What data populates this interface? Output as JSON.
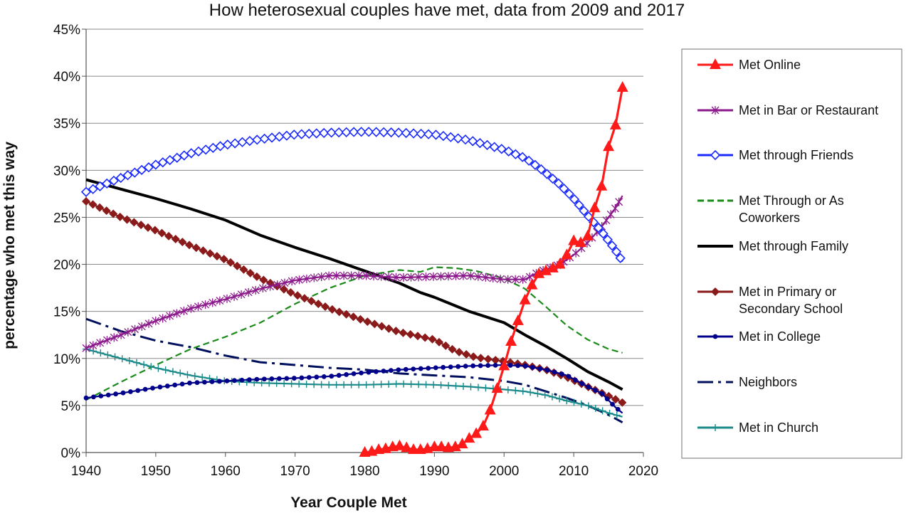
{
  "chart_data": {
    "type": "line",
    "title": "How heterosexual couples have met, data from 2009 and 2017",
    "xlabel": "Year Couple Met",
    "ylabel": "percentage who met this way",
    "xlim": [
      1940,
      2020
    ],
    "ylim": [
      0,
      45
    ],
    "x_ticks": [
      "1940",
      "1950",
      "1960",
      "1970",
      "1980",
      "1990",
      "2000",
      "2010",
      "2020"
    ],
    "y_ticks": [
      "0%",
      "5%",
      "10%",
      "15%",
      "20%",
      "25%",
      "30%",
      "35%",
      "40%",
      "45%"
    ],
    "grid": "horizontal",
    "legend": "right",
    "series": [
      {
        "name": "Met Online",
        "color": "#ff1a1a",
        "marker": "triangle",
        "points": [
          [
            1980,
            0
          ],
          [
            1981,
            0.1
          ],
          [
            1982,
            0.3
          ],
          [
            1983,
            0.4
          ],
          [
            1984,
            0.6
          ],
          [
            1985,
            0.7
          ],
          [
            1986,
            0.5
          ],
          [
            1987,
            0.3
          ],
          [
            1988,
            0.3
          ],
          [
            1989,
            0.4
          ],
          [
            1990,
            0.6
          ],
          [
            1991,
            0.6
          ],
          [
            1992,
            0.5
          ],
          [
            1993,
            0.6
          ],
          [
            1994,
            0.9
          ],
          [
            1995,
            1.5
          ],
          [
            1996,
            2.0
          ],
          [
            1997,
            2.8
          ],
          [
            1998,
            4.5
          ],
          [
            1999,
            6.8
          ],
          [
            2000,
            9.2
          ],
          [
            2001,
            11.8
          ],
          [
            2002,
            14.0
          ],
          [
            2003,
            16.2
          ],
          [
            2004,
            17.8
          ],
          [
            2005,
            19.0
          ],
          [
            2006,
            19.3
          ],
          [
            2007,
            19.6
          ],
          [
            2008,
            20.0
          ],
          [
            2009,
            21.0
          ],
          [
            2010,
            22.5
          ],
          [
            2011,
            22.3
          ],
          [
            2012,
            23.0
          ],
          [
            2013,
            26.0
          ],
          [
            2014,
            28.3
          ],
          [
            2015,
            32.5
          ],
          [
            2016,
            34.8
          ],
          [
            2017,
            38.8
          ]
        ]
      },
      {
        "name": "Met in Bar or Restaurant",
        "color": "#8b1a8b",
        "marker": "star",
        "points": [
          [
            1940,
            11.1
          ],
          [
            1945,
            12.5
          ],
          [
            1950,
            14.0
          ],
          [
            1955,
            15.3
          ],
          [
            1960,
            16.3
          ],
          [
            1965,
            17.4
          ],
          [
            1970,
            18.3
          ],
          [
            1975,
            18.8
          ],
          [
            1980,
            18.8
          ],
          [
            1985,
            18.6
          ],
          [
            1990,
            18.7
          ],
          [
            1995,
            18.8
          ],
          [
            2000,
            18.4
          ],
          [
            2003,
            18.4
          ],
          [
            2005,
            19.2
          ],
          [
            2008,
            20.0
          ],
          [
            2010,
            21.0
          ],
          [
            2012,
            22.3
          ],
          [
            2014,
            24.0
          ],
          [
            2016,
            26.0
          ],
          [
            2017,
            27.3
          ]
        ]
      },
      {
        "name": "Met through Friends",
        "color": "#1a2aff",
        "marker": "diamond-open",
        "points": [
          [
            1940,
            27.7
          ],
          [
            1945,
            29.2
          ],
          [
            1950,
            30.6
          ],
          [
            1955,
            31.8
          ],
          [
            1960,
            32.7
          ],
          [
            1965,
            33.3
          ],
          [
            1970,
            33.8
          ],
          [
            1975,
            34.0
          ],
          [
            1980,
            34.1
          ],
          [
            1985,
            34.0
          ],
          [
            1990,
            33.8
          ],
          [
            1995,
            33.2
          ],
          [
            2000,
            32.2
          ],
          [
            2003,
            31.3
          ],
          [
            2005,
            30.3
          ],
          [
            2008,
            28.5
          ],
          [
            2010,
            27.0
          ],
          [
            2012,
            25.2
          ],
          [
            2014,
            23.5
          ],
          [
            2016,
            21.5
          ],
          [
            2017,
            20.3
          ]
        ]
      },
      {
        "name": "Met Through or As Coworkers",
        "color": "#1a8a1a",
        "marker": "none",
        "dash": "9,5",
        "points": [
          [
            1940,
            5.6
          ],
          [
            1945,
            7.5
          ],
          [
            1950,
            9.3
          ],
          [
            1955,
            11.0
          ],
          [
            1960,
            12.3
          ],
          [
            1965,
            13.8
          ],
          [
            1970,
            15.8
          ],
          [
            1975,
            17.5
          ],
          [
            1980,
            18.8
          ],
          [
            1985,
            19.4
          ],
          [
            1988,
            19.2
          ],
          [
            1990,
            19.7
          ],
          [
            1993,
            19.6
          ],
          [
            1996,
            19.3
          ],
          [
            2000,
            18.5
          ],
          [
            2003,
            17.4
          ],
          [
            2006,
            15.5
          ],
          [
            2009,
            13.5
          ],
          [
            2012,
            12.0
          ],
          [
            2015,
            11.0
          ],
          [
            2017,
            10.6
          ]
        ]
      },
      {
        "name": "Met through Family",
        "color": "#000000",
        "marker": "none",
        "width": 4,
        "points": [
          [
            1940,
            29.0
          ],
          [
            1945,
            28.0
          ],
          [
            1950,
            27.0
          ],
          [
            1955,
            25.9
          ],
          [
            1960,
            24.7
          ],
          [
            1965,
            23.1
          ],
          [
            1970,
            21.8
          ],
          [
            1975,
            20.6
          ],
          [
            1980,
            19.3
          ],
          [
            1985,
            18.0
          ],
          [
            1988,
            17.0
          ],
          [
            1990,
            16.5
          ],
          [
            1995,
            15.0
          ],
          [
            2000,
            13.8
          ],
          [
            2003,
            12.5
          ],
          [
            2006,
            11.3
          ],
          [
            2009,
            10.0
          ],
          [
            2012,
            8.6
          ],
          [
            2015,
            7.5
          ],
          [
            2017,
            6.7
          ]
        ]
      },
      {
        "name": "Met in Primary or Secondary School",
        "color": "#8b1a1a",
        "marker": "diamond",
        "points": [
          [
            1940,
            26.7
          ],
          [
            1945,
            25.0
          ],
          [
            1950,
            23.6
          ],
          [
            1955,
            22.0
          ],
          [
            1960,
            20.5
          ],
          [
            1965,
            18.5
          ],
          [
            1970,
            16.8
          ],
          [
            1975,
            15.3
          ],
          [
            1980,
            14.0
          ],
          [
            1985,
            12.8
          ],
          [
            1990,
            12.0
          ],
          [
            1993,
            10.8
          ],
          [
            1996,
            10.1
          ],
          [
            2000,
            9.7
          ],
          [
            2003,
            9.3
          ],
          [
            2006,
            8.8
          ],
          [
            2009,
            8.0
          ],
          [
            2012,
            7.0
          ],
          [
            2015,
            6.0
          ],
          [
            2017,
            5.3
          ]
        ]
      },
      {
        "name": "Met in College",
        "color": "#00008b",
        "marker": "dot",
        "points": [
          [
            1940,
            5.8
          ],
          [
            1945,
            6.3
          ],
          [
            1950,
            6.9
          ],
          [
            1955,
            7.4
          ],
          [
            1960,
            7.6
          ],
          [
            1965,
            7.8
          ],
          [
            1970,
            7.9
          ],
          [
            1975,
            8.1
          ],
          [
            1980,
            8.5
          ],
          [
            1985,
            8.8
          ],
          [
            1990,
            9.0
          ],
          [
            1995,
            9.2
          ],
          [
            2000,
            9.3
          ],
          [
            2003,
            9.2
          ],
          [
            2006,
            8.8
          ],
          [
            2009,
            8.2
          ],
          [
            2012,
            7.0
          ],
          [
            2014,
            6.3
          ],
          [
            2016,
            4.8
          ],
          [
            2017,
            4.2
          ]
        ]
      },
      {
        "name": "Neighbors",
        "color": "#00105e",
        "marker": "none",
        "dash": "22,7,4,7",
        "width": 3,
        "points": [
          [
            1940,
            14.2
          ],
          [
            1945,
            12.9
          ],
          [
            1950,
            11.9
          ],
          [
            1955,
            11.2
          ],
          [
            1960,
            10.3
          ],
          [
            1965,
            9.6
          ],
          [
            1970,
            9.3
          ],
          [
            1975,
            9.0
          ],
          [
            1980,
            8.8
          ],
          [
            1985,
            8.4
          ],
          [
            1990,
            8.2
          ],
          [
            1995,
            8.0
          ],
          [
            2000,
            7.6
          ],
          [
            2003,
            7.2
          ],
          [
            2006,
            6.5
          ],
          [
            2009,
            5.8
          ],
          [
            2012,
            5.0
          ],
          [
            2015,
            4.0
          ],
          [
            2017,
            3.2
          ]
        ]
      },
      {
        "name": "Met in Church",
        "color": "#1a8a8a",
        "marker": "plus",
        "points": [
          [
            1940,
            11.0
          ],
          [
            1945,
            10.0
          ],
          [
            1950,
            9.0
          ],
          [
            1955,
            8.2
          ],
          [
            1960,
            7.6
          ],
          [
            1965,
            7.4
          ],
          [
            1970,
            7.3
          ],
          [
            1975,
            7.2
          ],
          [
            1980,
            7.2
          ],
          [
            1985,
            7.3
          ],
          [
            1990,
            7.2
          ],
          [
            1995,
            7.0
          ],
          [
            2000,
            6.7
          ],
          [
            2003,
            6.5
          ],
          [
            2006,
            6.1
          ],
          [
            2009,
            5.5
          ],
          [
            2012,
            5.0
          ],
          [
            2015,
            4.2
          ],
          [
            2017,
            3.8
          ]
        ]
      }
    ]
  }
}
